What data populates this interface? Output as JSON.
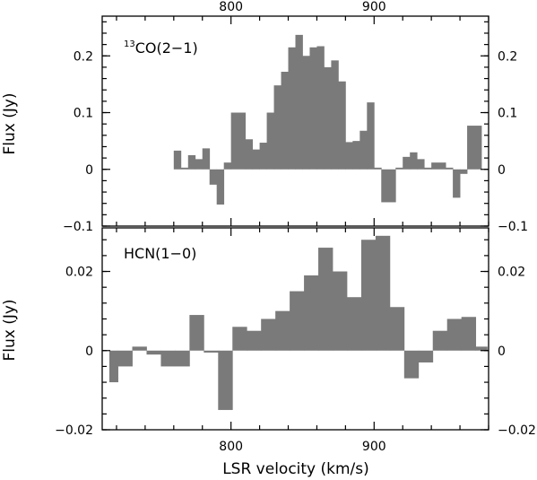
{
  "chart_data": [
    {
      "type": "histogram",
      "label": "CO(2−1)",
      "label_superscript": "13",
      "ylabel": "Flux (Jy)",
      "xlabel": "",
      "xlim": [
        710,
        980
      ],
      "ylim": [
        -0.1,
        0.27
      ],
      "xticks_top": [
        "800",
        "900"
      ],
      "yticks": [
        "−0.1",
        "0",
        "0.1",
        "0.2"
      ],
      "ytick_values": [
        -0.1,
        0,
        0.1,
        0.2
      ],
      "color": "#7a7a7a",
      "bins": [
        {
          "x0": 760,
          "x1": 765,
          "y": 0.033
        },
        {
          "x0": 765,
          "x1": 770,
          "y": 0.003
        },
        {
          "x0": 770,
          "x1": 775,
          "y": 0.025
        },
        {
          "x0": 775,
          "x1": 780,
          "y": 0.018
        },
        {
          "x0": 780,
          "x1": 785,
          "y": 0.037
        },
        {
          "x0": 785,
          "x1": 790,
          "y": -0.027
        },
        {
          "x0": 790,
          "x1": 795,
          "y": -0.062
        },
        {
          "x0": 795,
          "x1": 800,
          "y": 0.012
        },
        {
          "x0": 800,
          "x1": 810,
          "y": 0.1
        },
        {
          "x0": 810,
          "x1": 815,
          "y": 0.053
        },
        {
          "x0": 815,
          "x1": 820,
          "y": 0.035
        },
        {
          "x0": 820,
          "x1": 825,
          "y": 0.047
        },
        {
          "x0": 825,
          "x1": 830,
          "y": 0.1
        },
        {
          "x0": 830,
          "x1": 835,
          "y": 0.148
        },
        {
          "x0": 835,
          "x1": 840,
          "y": 0.172
        },
        {
          "x0": 840,
          "x1": 845,
          "y": 0.215
        },
        {
          "x0": 845,
          "x1": 850,
          "y": 0.237
        },
        {
          "x0": 850,
          "x1": 855,
          "y": 0.2
        },
        {
          "x0": 855,
          "x1": 860,
          "y": 0.215
        },
        {
          "x0": 860,
          "x1": 865,
          "y": 0.217
        },
        {
          "x0": 865,
          "x1": 870,
          "y": 0.18
        },
        {
          "x0": 870,
          "x1": 875,
          "y": 0.192
        },
        {
          "x0": 875,
          "x1": 880,
          "y": 0.155
        },
        {
          "x0": 880,
          "x1": 885,
          "y": 0.048
        },
        {
          "x0": 885,
          "x1": 890,
          "y": 0.05
        },
        {
          "x0": 890,
          "x1": 895,
          "y": 0.068
        },
        {
          "x0": 895,
          "x1": 900,
          "y": 0.118
        },
        {
          "x0": 900,
          "x1": 905,
          "y": 0.003
        },
        {
          "x0": 905,
          "x1": 915,
          "y": -0.058
        },
        {
          "x0": 915,
          "x1": 920,
          "y": 0.003
        },
        {
          "x0": 920,
          "x1": 925,
          "y": 0.022
        },
        {
          "x0": 925,
          "x1": 930,
          "y": 0.03
        },
        {
          "x0": 930,
          "x1": 935,
          "y": 0.018
        },
        {
          "x0": 935,
          "x1": 940,
          "y": 0.003
        },
        {
          "x0": 940,
          "x1": 950,
          "y": 0.012
        },
        {
          "x0": 950,
          "x1": 955,
          "y": 0.003
        },
        {
          "x0": 955,
          "x1": 960,
          "y": -0.05
        },
        {
          "x0": 960,
          "x1": 965,
          "y": -0.008
        },
        {
          "x0": 965,
          "x1": 975,
          "y": 0.077
        }
      ]
    },
    {
      "type": "histogram",
      "label": "HCN(1−0)",
      "ylabel": "Flux (Jy)",
      "xlabel": "LSR velocity (km/s)",
      "xlim": [
        710,
        980
      ],
      "ylim": [
        -0.02,
        0.031
      ],
      "xticks_bottom": [
        "800",
        "900"
      ],
      "yticks": [
        "−0.02",
        "0",
        "0.02"
      ],
      "ytick_values": [
        -0.02,
        0,
        0.02
      ],
      "color": "#7a7a7a",
      "bins": [
        {
          "x0": 715,
          "x1": 721,
          "y": -0.008
        },
        {
          "x0": 721,
          "x1": 731,
          "y": -0.004
        },
        {
          "x0": 731,
          "x1": 741,
          "y": 0.001
        },
        {
          "x0": 741,
          "x1": 751,
          "y": -0.001
        },
        {
          "x0": 751,
          "x1": 761,
          "y": -0.004
        },
        {
          "x0": 761,
          "x1": 771,
          "y": -0.004
        },
        {
          "x0": 771,
          "x1": 781,
          "y": 0.009
        },
        {
          "x0": 781,
          "x1": 791,
          "y": -0.0005
        },
        {
          "x0": 791,
          "x1": 801,
          "y": -0.015
        },
        {
          "x0": 801,
          "x1": 811,
          "y": 0.006
        },
        {
          "x0": 811,
          "x1": 821,
          "y": 0.005
        },
        {
          "x0": 821,
          "x1": 831,
          "y": 0.008
        },
        {
          "x0": 831,
          "x1": 841,
          "y": 0.01
        },
        {
          "x0": 841,
          "x1": 851,
          "y": 0.015
        },
        {
          "x0": 851,
          "x1": 861,
          "y": 0.019
        },
        {
          "x0": 861,
          "x1": 871,
          "y": 0.026
        },
        {
          "x0": 871,
          "x1": 881,
          "y": 0.02
        },
        {
          "x0": 881,
          "x1": 891,
          "y": 0.0135
        },
        {
          "x0": 891,
          "x1": 901,
          "y": 0.028
        },
        {
          "x0": 901,
          "x1": 911,
          "y": 0.029
        },
        {
          "x0": 911,
          "x1": 921,
          "y": 0.011
        },
        {
          "x0": 921,
          "x1": 931,
          "y": -0.007
        },
        {
          "x0": 931,
          "x1": 941,
          "y": -0.003
        },
        {
          "x0": 941,
          "x1": 951,
          "y": 0.005
        },
        {
          "x0": 951,
          "x1": 961,
          "y": 0.008
        },
        {
          "x0": 961,
          "x1": 971,
          "y": 0.0085
        },
        {
          "x0": 971,
          "x1": 979,
          "y": 0.001
        }
      ]
    }
  ]
}
